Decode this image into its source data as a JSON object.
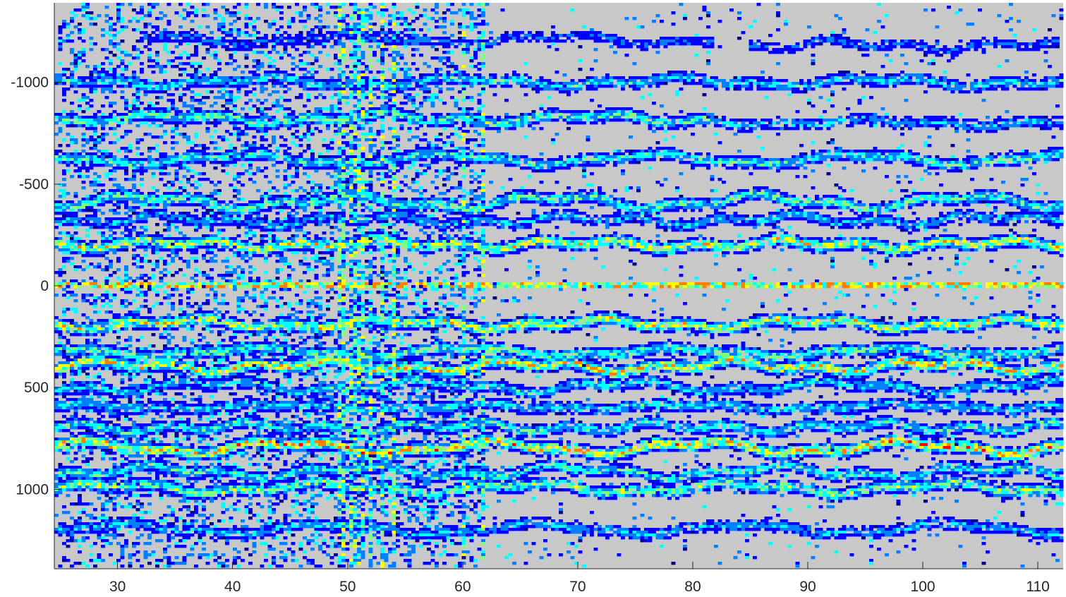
{
  "chart_data": {
    "type": "heatmap",
    "title": "",
    "xlabel": "",
    "ylabel": "",
    "xlim": [
      24.5,
      112.2
    ],
    "ylim": [
      -1390,
      1390
    ],
    "y_reversed": true,
    "x_ticks": [
      30,
      40,
      50,
      60,
      70,
      80,
      90,
      100,
      110
    ],
    "x_tick_labels": [
      "30",
      "40",
      "50",
      "60",
      "70",
      "80",
      "90",
      "100",
      "110"
    ],
    "y_ticks": [
      -1000,
      -500,
      0,
      500,
      1000
    ],
    "y_tick_labels": [
      "-1000",
      "-500",
      "0",
      "500",
      "1000"
    ],
    "background_color": "#c8c8c8",
    "colormap": "jet",
    "colormap_stops": [
      "#00008f",
      "#0000ff",
      "#0080ff",
      "#00ffff",
      "#80ff80",
      "#ffff00",
      "#ff8000",
      "#ff0000",
      "#800000"
    ],
    "grid": false,
    "colorbar": false,
    "bands": [
      {
        "y": -1210,
        "strength": 0.3,
        "x_range": [
          32,
          82
        ]
      },
      {
        "y": -1180,
        "strength": 0.3,
        "x_range": [
          85,
          112
        ]
      },
      {
        "y": -1000,
        "strength": 0.45,
        "x_range": [
          24.5,
          112.2
        ]
      },
      {
        "y": -820,
        "strength": 0.55,
        "x_range": [
          24.5,
          82
        ]
      },
      {
        "y": -800,
        "strength": 0.4,
        "x_range": [
          82,
          112.2
        ]
      },
      {
        "y": -620,
        "strength": 0.5,
        "x_range": [
          24.5,
          112.2
        ]
      },
      {
        "y": -410,
        "strength": 0.55,
        "x_range": [
          24.5,
          112.2
        ]
      },
      {
        "y": -320,
        "strength": 0.4,
        "x_range": [
          24.5,
          112.2
        ]
      },
      {
        "y": -200,
        "strength": 0.7,
        "x_range": [
          24.5,
          112.2
        ]
      },
      {
        "y": 0,
        "strength": 1.0,
        "x_range": [
          24.5,
          112.2
        ]
      },
      {
        "y": 190,
        "strength": 0.7,
        "x_range": [
          24.5,
          112.2
        ]
      },
      {
        "y": 330,
        "strength": 0.55,
        "x_range": [
          24.5,
          112.2
        ]
      },
      {
        "y": 400,
        "strength": 0.75,
        "x_range": [
          24.5,
          112.2
        ]
      },
      {
        "y": 500,
        "strength": 0.45,
        "x_range": [
          24.5,
          112.2
        ]
      },
      {
        "y": 600,
        "strength": 0.45,
        "x_range": [
          24.5,
          112.2
        ]
      },
      {
        "y": 700,
        "strength": 0.5,
        "x_range": [
          24.5,
          112.2
        ]
      },
      {
        "y": 800,
        "strength": 0.8,
        "x_range": [
          24.5,
          112.2
        ]
      },
      {
        "y": 920,
        "strength": 0.5,
        "x_range": [
          24.5,
          112.2
        ]
      },
      {
        "y": 1000,
        "strength": 0.6,
        "x_range": [
          24.5,
          112.2
        ]
      },
      {
        "y": 1200,
        "strength": 0.4,
        "x_range": [
          24.5,
          112.2
        ]
      }
    ],
    "noisy_x_range": [
      25,
      62
    ],
    "vertical_streaks_x": [
      49.5,
      50.5,
      51.2,
      52.0,
      53.0,
      54.0,
      60.0,
      61.8
    ]
  }
}
